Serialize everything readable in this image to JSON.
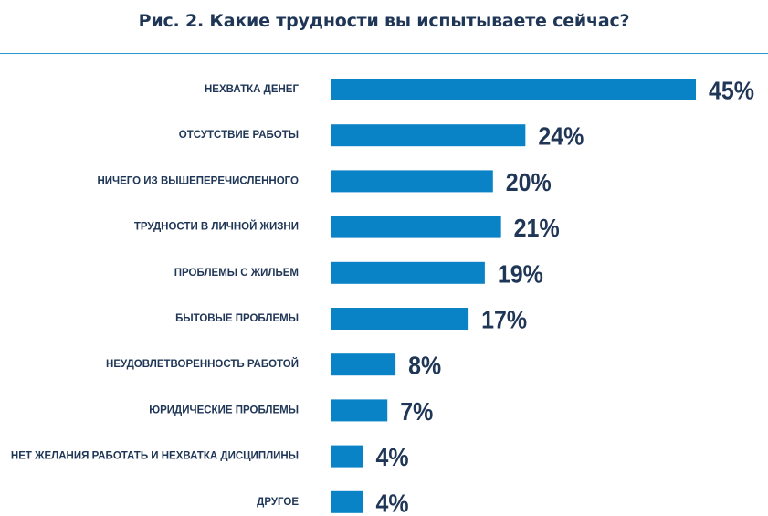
{
  "chart_data": {
    "type": "bar",
    "orientation": "horizontal",
    "title": "Рис. 2. Какие трудности вы испытываете сейчас?",
    "xlabel": "",
    "ylabel": "",
    "xlim": [
      0,
      45
    ],
    "grid": false,
    "legend": "none",
    "bar_color": "#0a83c6",
    "text_color": "#1f3656",
    "rule_color": "#2b97cf",
    "categories": [
      "НЕХВАТКА ДЕНЕГ",
      "ОТСУТСТВИЕ РАБОТЫ",
      "НИЧЕГО ИЗ ВЫШЕПЕРЕЧИСЛЕННОГО",
      "ТРУДНОСТИ В ЛИЧНОЙ ЖИЗНИ",
      "ПРОБЛЕМЫ С ЖИЛЬЕМ",
      "БЫТОВЫЕ ПРОБЛЕМЫ",
      "НЕУДОВЛЕТВОРЕННОСТЬ РАБОТОЙ",
      "ЮРИДИЧЕСКИЕ ПРОБЛЕМЫ",
      "НЕТ ЖЕЛАНИЯ РАБОТАТЬ И НЕХВАТКА ДИСЦИПЛИНЫ",
      "ДРУГОЕ"
    ],
    "values": [
      45,
      24,
      20,
      21,
      19,
      17,
      8,
      7,
      4,
      4
    ],
    "value_labels": [
      "45%",
      "24%",
      "20%",
      "21%",
      "19%",
      "17%",
      "8%",
      "7%",
      "4%",
      "4%"
    ]
  }
}
